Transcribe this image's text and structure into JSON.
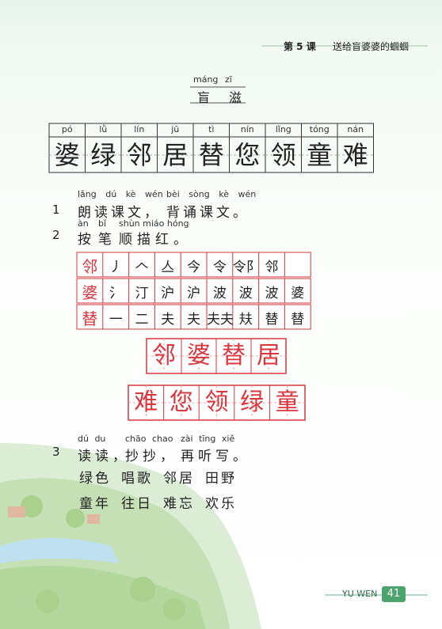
{
  "header": {
    "lesson": "第 5 课",
    "title": "送给盲婆婆的蝈蝈"
  },
  "new_chars": {
    "pinyin": [
      "máng",
      "zī"
    ],
    "chars": [
      "盲",
      "滋"
    ]
  },
  "vocab": {
    "pinyin": [
      "pó",
      "lǜ",
      "lín",
      "jū",
      "tì",
      "nín",
      "lǐng",
      "tóng",
      "nán"
    ],
    "chars": [
      "婆",
      "绿",
      "邻",
      "居",
      "替",
      "您",
      "领",
      "童",
      "难"
    ]
  },
  "exercise1": {
    "number": "1",
    "pinyin": [
      "lǎng dú kè wén",
      "bèi sòng kè wén"
    ],
    "text": [
      "朗读课文，",
      "背诵课文。"
    ]
  },
  "exercise2": {
    "number": "2",
    "pinyin": [
      "àn",
      "bǐ",
      "shùn miáo hóng"
    ],
    "text": [
      "按",
      "笔",
      "顺描红。"
    ]
  },
  "strokes": [
    {
      "char": "邻",
      "steps": [
        "丿",
        "𠆢",
        "亼",
        "今",
        "令",
        "令阝",
        "邻"
      ]
    },
    {
      "char": "婆",
      "steps": [
        "氵",
        "汀",
        "沪",
        "沪",
        "波",
        "波",
        "波",
        "婆",
        "婆"
      ]
    },
    {
      "char": "替",
      "steps": [
        "一",
        "二",
        "夫",
        "夫",
        "夫夫",
        "㚘",
        "替",
        "替",
        "替"
      ]
    }
  ],
  "red_boxes": [
    [
      "邻",
      "婆",
      "替",
      "居"
    ],
    [
      "难",
      "您",
      "领",
      "绿",
      "童"
    ]
  ],
  "exercise3": {
    "number": "3",
    "pinyin": [
      "dú du",
      "chāo chao",
      "zài tīng xiě"
    ],
    "text": [
      "读读，",
      "抄抄，",
      "再听写。"
    ],
    "words": [
      [
        "绿色",
        "唱歌",
        "邻居",
        "田野"
      ],
      [
        "童年",
        "往日",
        "难忘",
        "欢乐"
      ]
    ]
  },
  "footer": {
    "label": "YU WEN",
    "page": "41"
  }
}
